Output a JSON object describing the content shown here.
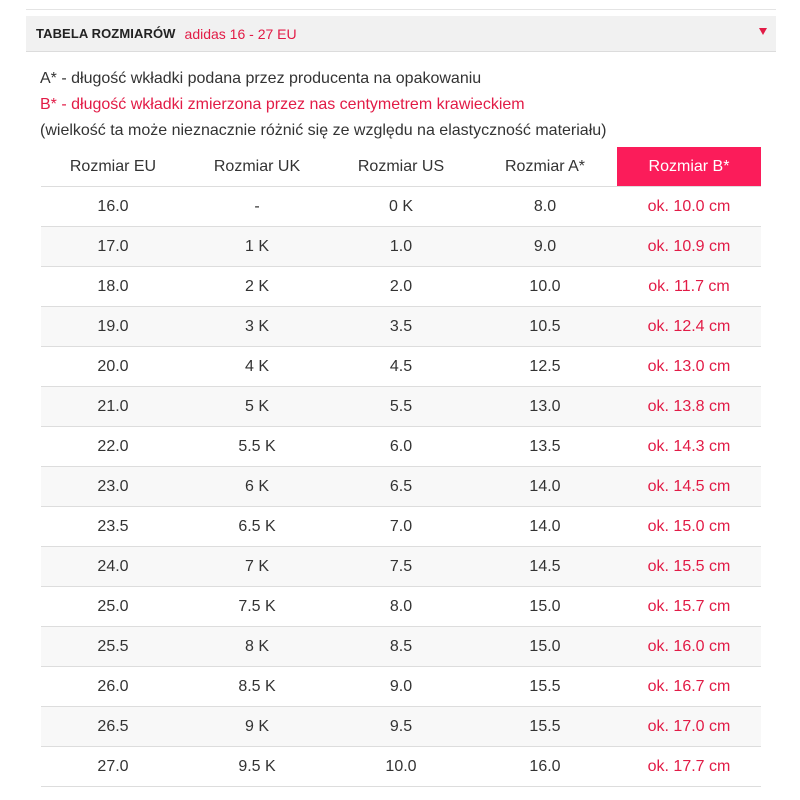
{
  "header": {
    "title": "TABELA ROZMIARÓW",
    "brand_range": "adidas 16 - 27 EU",
    "toggle_icon": "caret-down-icon",
    "accent_color": "#e21b46"
  },
  "notes": {
    "a": "A* - długość wkładki podana przez producenta na opakowaniu",
    "b": "B* - długość wkładki zmierzona przez nas centymetrem krawieckiem",
    "c": "(wielkość ta może nieznacznie różnić się ze względu na elastyczność materiału)"
  },
  "table": {
    "highlight_color": "#fb1c5a",
    "headers": [
      "Rozmiar EU",
      "Rozmiar UK",
      "Rozmiar US",
      "Rozmiar A*",
      "Rozmiar B*"
    ],
    "rows": [
      [
        "16.0",
        "-",
        "0 K",
        "8.0",
        "ok. 10.0 cm"
      ],
      [
        "17.0",
        "1 K",
        "1.0",
        "9.0",
        "ok. 10.9 cm"
      ],
      [
        "18.0",
        "2 K",
        "2.0",
        "10.0",
        "ok. 11.7 cm"
      ],
      [
        "19.0",
        "3 K",
        "3.5",
        "10.5",
        "ok. 12.4 cm"
      ],
      [
        "20.0",
        "4 K",
        "4.5",
        "12.5",
        "ok. 13.0 cm"
      ],
      [
        "21.0",
        "5 K",
        "5.5",
        "13.0",
        "ok. 13.8 cm"
      ],
      [
        "22.0",
        "5.5 K",
        "6.0",
        "13.5",
        "ok. 14.3 cm"
      ],
      [
        "23.0",
        "6 K",
        "6.5",
        "14.0",
        "ok. 14.5 cm"
      ],
      [
        "23.5",
        "6.5 K",
        "7.0",
        "14.0",
        "ok. 15.0 cm"
      ],
      [
        "24.0",
        "7 K",
        "7.5",
        "14.5",
        "ok. 15.5 cm"
      ],
      [
        "25.0",
        "7.5 K",
        "8.0",
        "15.0",
        "ok. 15.7 cm"
      ],
      [
        "25.5",
        "8 K",
        "8.5",
        "15.0",
        "ok. 16.0 cm"
      ],
      [
        "26.0",
        "8.5 K",
        "9.0",
        "15.5",
        "ok. 16.7 cm"
      ],
      [
        "26.5",
        "9 K",
        "9.5",
        "15.5",
        "ok. 17.0 cm"
      ],
      [
        "27.0",
        "9.5 K",
        "10.0",
        "16.0",
        "ok. 17.7 cm"
      ]
    ]
  }
}
